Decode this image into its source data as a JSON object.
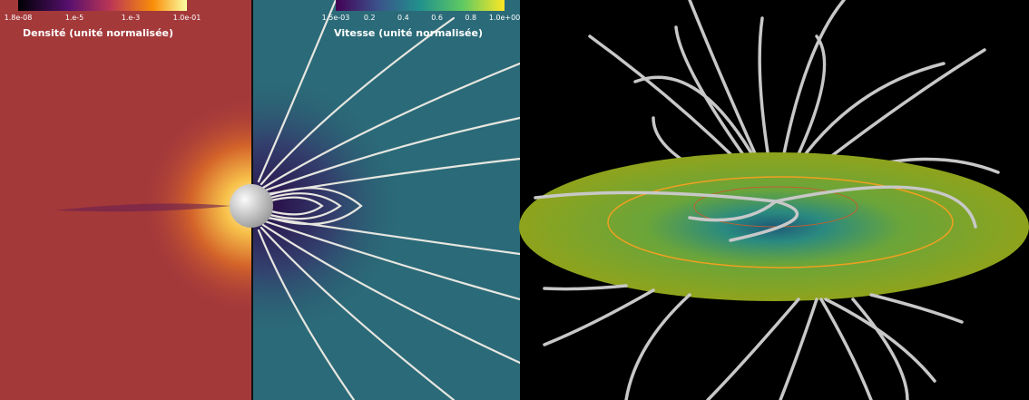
{
  "left_panel": {
    "colorbars": [
      {
        "title": "Densité (unité normalisée)",
        "ticks": [
          "1.8e-08",
          "1.e-5",
          "1.e-3",
          "1.0e-01"
        ]
      },
      {
        "title": "Vitesse (unité normalisée)",
        "ticks": [
          "1.5e-03",
          "0.2",
          "0.4",
          "0.6",
          "0.8",
          "1.0e+00"
        ]
      }
    ]
  }
}
